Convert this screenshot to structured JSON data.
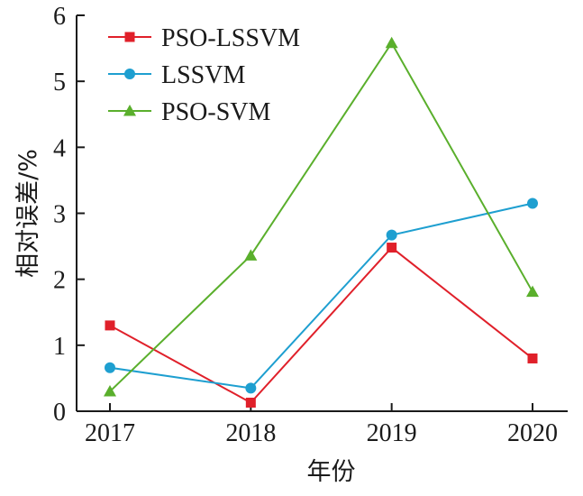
{
  "chart_data": {
    "type": "line",
    "xlabel": "年份",
    "ylabel": "相对误差/%",
    "categories": [
      "2017",
      "2018",
      "2019",
      "2020"
    ],
    "ylim": [
      0,
      6
    ],
    "yticks": [
      "0",
      "1",
      "2",
      "3",
      "4",
      "5",
      "6"
    ],
    "grid": false,
    "legend_position": "top-left",
    "series": [
      {
        "name": "PSO-LSSVM",
        "color": "#e0202a",
        "marker": "square",
        "values": [
          1.3,
          0.13,
          2.48,
          0.8
        ]
      },
      {
        "name": "LSSVM",
        "color": "#1e9fd0",
        "marker": "circle",
        "values": [
          0.66,
          0.35,
          2.67,
          3.15
        ]
      },
      {
        "name": "PSO-SVM",
        "color": "#5aaf2c",
        "marker": "triangle",
        "values": [
          0.3,
          2.36,
          5.58,
          1.81
        ]
      }
    ]
  }
}
